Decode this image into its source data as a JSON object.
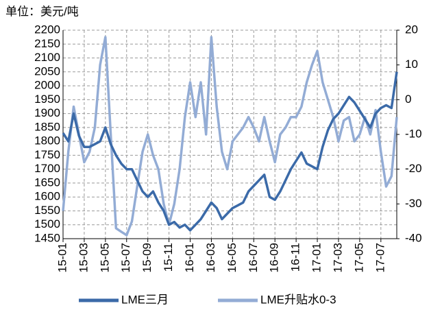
{
  "chart_data": {
    "type": "line",
    "title": "单位：美元/吨",
    "categories": [
      "15-01",
      null,
      null,
      null,
      "15-03",
      null,
      null,
      null,
      "15-05",
      null,
      null,
      null,
      "15-07",
      null,
      null,
      null,
      "15-09",
      null,
      null,
      null,
      "15-11",
      null,
      null,
      null,
      "16-01",
      null,
      null,
      null,
      "16-03",
      null,
      null,
      null,
      "16-05",
      null,
      null,
      null,
      "16-07",
      null,
      null,
      null,
      "16-09",
      null,
      null,
      null,
      "16-11",
      null,
      null,
      null,
      "17-01",
      null,
      null,
      null,
      "17-03",
      null,
      null,
      null,
      "17-05",
      null,
      null,
      null,
      "17-07",
      null,
      null,
      null
    ],
    "series": [
      {
        "name": "LME三月",
        "color": "#3b6aa8",
        "axis": "y",
        "values": [
          1830,
          1800,
          1900,
          1820,
          1780,
          1780,
          1790,
          1800,
          1850,
          1790,
          1750,
          1720,
          1700,
          1700,
          1660,
          1620,
          1600,
          1620,
          1580,
          1550,
          1500,
          1510,
          1490,
          1500,
          1480,
          1500,
          1520,
          1550,
          1580,
          1560,
          1520,
          1540,
          1560,
          1570,
          1580,
          1620,
          1640,
          1660,
          1680,
          1600,
          1590,
          1620,
          1660,
          1700,
          1730,
          1760,
          1720,
          1710,
          1700,
          1780,
          1840,
          1880,
          1900,
          1930,
          1960,
          1940,
          1910,
          1880,
          1850,
          1900,
          1920,
          1930,
          1920,
          2050
        ]
      },
      {
        "name": "LME升贴水0-3",
        "color": "#93acd5",
        "axis": "y2",
        "values": [
          -32,
          -15,
          -2,
          -10,
          -18,
          -15,
          -8,
          10,
          18,
          -10,
          -37,
          -38,
          -39,
          -35,
          -25,
          -15,
          -10,
          -16,
          -20,
          -30,
          -36,
          -30,
          -20,
          -5,
          5,
          -5,
          5,
          -10,
          18,
          -2,
          -15,
          -20,
          -12,
          -10,
          -8,
          -5,
          -8,
          -12,
          -5,
          -12,
          -18,
          -10,
          -8,
          -5,
          -5,
          -2,
          5,
          10,
          14,
          5,
          0,
          -5,
          -12,
          -6,
          -5,
          -12,
          -10,
          -5,
          -10,
          -3,
          -15,
          -25,
          -22,
          -5
        ]
      }
    ],
    "ylim": [
      1450,
      2200
    ],
    "yticks": [
      1450,
      1500,
      1550,
      1600,
      1650,
      1700,
      1750,
      1800,
      1850,
      1900,
      1950,
      2000,
      2050,
      2100,
      2150,
      2200
    ],
    "y2lim": [
      -40,
      20
    ],
    "y2ticks": [
      -40,
      -30,
      -20,
      -10,
      0,
      10,
      20
    ],
    "grid": true,
    "legend": "bottom"
  }
}
